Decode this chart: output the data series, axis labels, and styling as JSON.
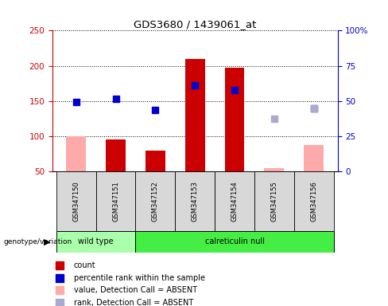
{
  "title": "GDS3680 / 1439061_at",
  "samples": [
    "GSM347150",
    "GSM347151",
    "GSM347152",
    "GSM347153",
    "GSM347154",
    "GSM347155",
    "GSM347156"
  ],
  "count_values": [
    100,
    95,
    80,
    210,
    197,
    55,
    87
  ],
  "count_absent": [
    true,
    false,
    false,
    false,
    false,
    true,
    true
  ],
  "percentile_values": [
    148,
    153,
    137,
    172,
    165,
    null,
    140
  ],
  "percentile_absent": [
    false,
    false,
    false,
    false,
    false,
    false,
    false
  ],
  "percentile_absent_values": [
    null,
    null,
    null,
    null,
    null,
    125,
    140
  ],
  "ymin": 50,
  "ymax": 250,
  "yright_min": 0,
  "yright_max": 100,
  "yticks_left": [
    50,
    100,
    150,
    200,
    250
  ],
  "yticks_right": [
    0,
    25,
    50,
    75,
    100
  ],
  "ytick_labels_right": [
    "0",
    "25",
    "50",
    "75",
    "100%"
  ],
  "color_count": "#cc0000",
  "color_count_absent": "#ffaaaa",
  "color_percentile": "#0000cc",
  "color_percentile_absent": "#aaaacc",
  "legend_items": [
    {
      "label": "count",
      "color": "#cc0000"
    },
    {
      "label": "percentile rank within the sample",
      "color": "#0000cc"
    },
    {
      "label": "value, Detection Call = ABSENT",
      "color": "#ffaaaa"
    },
    {
      "label": "rank, Detection Call = ABSENT",
      "color": "#aaaacc"
    }
  ],
  "xlabel_color": "#cc0000",
  "ylabel_color": "#0000cc",
  "bar_width": 0.5,
  "group_edges": [
    0,
    2,
    7
  ],
  "group_labels": [
    "wild type",
    "calreticulin null"
  ],
  "group_colors": [
    "#aaffaa",
    "#44ee44"
  ]
}
